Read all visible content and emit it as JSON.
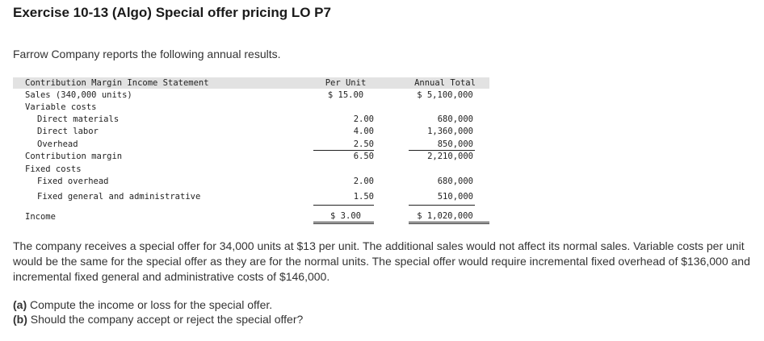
{
  "title": "Exercise 10-13 (Algo) Special offer pricing LO P7",
  "intro": "Farrow Company reports the following annual results.",
  "statement": {
    "heading": "Contribution Margin Income Statement",
    "col_per_unit": "Per Unit",
    "col_annual_total": "Annual Total",
    "rows": [
      {
        "label": "Sales (340,000 units)",
        "per_unit": "$ 15.00",
        "total": "$ 5,100,000"
      },
      {
        "label": "Variable costs",
        "per_unit": "",
        "total": ""
      },
      {
        "label": "Direct materials",
        "per_unit": "2.00",
        "total": "680,000"
      },
      {
        "label": "Direct labor",
        "per_unit": "4.00",
        "total": "1,360,000"
      },
      {
        "label": "Overhead",
        "per_unit": "2.50",
        "total": "850,000"
      },
      {
        "label": "Contribution margin",
        "per_unit": "6.50",
        "total": "2,210,000"
      },
      {
        "label": "Fixed costs",
        "per_unit": "",
        "total": ""
      },
      {
        "label": "Fixed overhead",
        "per_unit": "2.00",
        "total": "680,000"
      },
      {
        "label": "Fixed general and administrative",
        "per_unit": "1.50",
        "total": "510,000"
      },
      {
        "label": "Income",
        "per_unit": "$ 3.00",
        "total": "$ 1,020,000"
      }
    ]
  },
  "paragraph": "The company receives a special offer for 34,000 units at $13 per unit. The additional sales would not affect its normal sales. Variable costs per unit would be the same for the special offer as they are for the normal units. The special offer would require incremental fixed overhead of $136,000 and incremental fixed general and administrative costs of $146,000.",
  "questions": [
    {
      "marker": "(a)",
      "text": "Compute the income or loss for the special offer."
    },
    {
      "marker": "(b)",
      "text": "Should the company accept or reject the special offer?"
    }
  ]
}
